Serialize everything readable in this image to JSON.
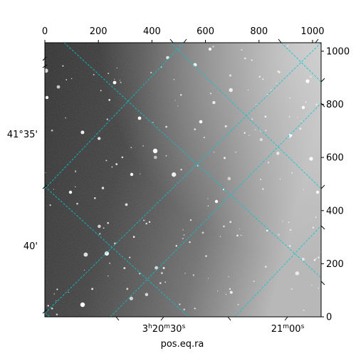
{
  "chart_data": {
    "type": "image",
    "xlabel": "pos.eq.ra",
    "pixel_axes": {
      "x": {
        "range": [
          0,
          1032
        ],
        "ticks": [
          0,
          200,
          400,
          600,
          800,
          1000
        ],
        "tick_labels": [
          "0",
          "200",
          "400",
          "600",
          "800",
          "1000"
        ]
      },
      "y": {
        "range": [
          0,
          1032
        ],
        "ticks": [
          0,
          200,
          400,
          600,
          800,
          1000
        ],
        "tick_labels": [
          "0",
          "200",
          "400",
          "600",
          "800",
          "1000"
        ]
      }
    },
    "world_axes": {
      "ra_ticks": [
        {
          "label_main": "3",
          "label_sup_h": "h",
          "label_min": "20",
          "label_sup_m": "m",
          "label_sec": "30",
          "label_sup_s": "s",
          "x": 440
        },
        {
          "label_main": "21",
          "label_sup_m": "m",
          "label_sec": "00",
          "label_sup_s": "s",
          "x": 905
        }
      ],
      "dec_ticks": [
        {
          "label": "41°35'",
          "y": 680
        },
        {
          "label": "40'",
          "y": 260
        }
      ]
    },
    "grid": true,
    "grid_color": "#00c8d2",
    "colormap": "gray"
  }
}
